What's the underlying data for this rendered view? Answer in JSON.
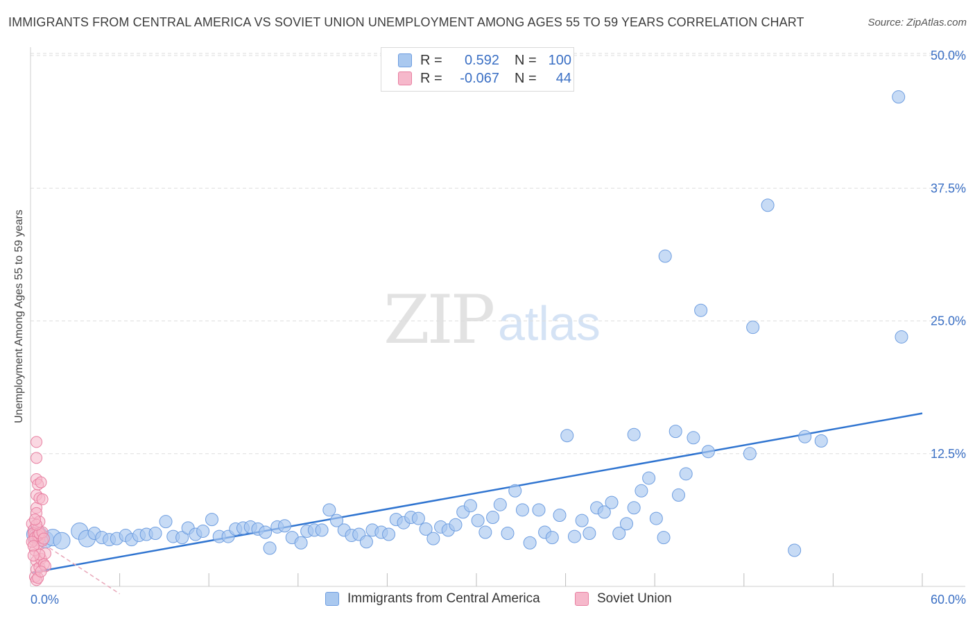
{
  "title": "IMMIGRANTS FROM CENTRAL AMERICA VS SOVIET UNION UNEMPLOYMENT AMONG AGES 55 TO 59 YEARS CORRELATION CHART",
  "source": "Source: ZipAtlas.com",
  "watermark": {
    "zip": "ZIP",
    "atlas": "atlas"
  },
  "legend": {
    "r_label": "R =",
    "n_label": "N =",
    "rows": [
      {
        "r": "0.592",
        "n": "100"
      },
      {
        "r": "-0.067",
        "n": "44"
      }
    ]
  },
  "bottom_legend": [
    "Immigrants from Central America",
    "Soviet Union"
  ],
  "colors": {
    "blue_fill": "#a9c8ef",
    "blue_stroke": "#6d9de0",
    "blue_line": "#2f74d0",
    "pink_fill": "#f6b8cb",
    "pink_stroke": "#e87fa1",
    "pink_line": "#e8a7b9",
    "grid": "#dddddd",
    "tick_label": "#3a6fc4"
  },
  "chart_data": {
    "type": "scatter",
    "xlabel": "",
    "ylabel": "Unemployment Among Ages 55 to 59 years",
    "xlim": [
      0,
      60
    ],
    "ylim": [
      0,
      50
    ],
    "x_tick_labels": [
      {
        "value": 0,
        "label": "0.0%"
      },
      {
        "value": 60,
        "label": "60.0%"
      }
    ],
    "y_tick_labels": [
      {
        "value": 12.5,
        "label": "12.5%"
      },
      {
        "value": 25,
        "label": "25.0%"
      },
      {
        "value": 37.5,
        "label": "37.5%"
      },
      {
        "value": 50,
        "label": "50.0%"
      }
    ],
    "grid": true,
    "legend_position": "top-center",
    "series": [
      {
        "name": "Immigrants from Central America",
        "trend": {
          "x": [
            0.1,
            60
          ],
          "y": [
            1.3,
            16.3
          ]
        },
        "points": [
          [
            0.3,
            4.9
          ],
          [
            0.6,
            4.8
          ],
          [
            1.0,
            4.4
          ],
          [
            1.5,
            4.6
          ],
          [
            2.1,
            4.3
          ],
          [
            3.3,
            5.2
          ],
          [
            3.8,
            4.5
          ],
          [
            4.3,
            5.0
          ],
          [
            4.8,
            4.6
          ],
          [
            5.3,
            4.4
          ],
          [
            5.8,
            4.5
          ],
          [
            6.4,
            4.8
          ],
          [
            6.8,
            4.4
          ],
          [
            7.3,
            4.8
          ],
          [
            7.8,
            4.9
          ],
          [
            8.4,
            5.0
          ],
          [
            9.1,
            6.1
          ],
          [
            9.6,
            4.7
          ],
          [
            10.2,
            4.6
          ],
          [
            10.6,
            5.5
          ],
          [
            11.1,
            4.9
          ],
          [
            11.6,
            5.2
          ],
          [
            12.2,
            6.3
          ],
          [
            12.7,
            4.7
          ],
          [
            13.3,
            4.7
          ],
          [
            13.8,
            5.4
          ],
          [
            14.3,
            5.5
          ],
          [
            14.8,
            5.6
          ],
          [
            15.3,
            5.4
          ],
          [
            15.8,
            5.1
          ],
          [
            16.1,
            3.6
          ],
          [
            16.6,
            5.6
          ],
          [
            17.1,
            5.7
          ],
          [
            17.6,
            4.6
          ],
          [
            18.2,
            4.1
          ],
          [
            18.6,
            5.2
          ],
          [
            19.1,
            5.3
          ],
          [
            19.6,
            5.3
          ],
          [
            20.1,
            7.2
          ],
          [
            20.6,
            6.2
          ],
          [
            21.1,
            5.3
          ],
          [
            21.6,
            4.8
          ],
          [
            22.1,
            4.9
          ],
          [
            22.6,
            4.2
          ],
          [
            23.0,
            5.3
          ],
          [
            23.6,
            5.1
          ],
          [
            24.1,
            4.9
          ],
          [
            24.6,
            6.3
          ],
          [
            25.1,
            6.0
          ],
          [
            25.6,
            6.5
          ],
          [
            26.1,
            6.4
          ],
          [
            26.6,
            5.4
          ],
          [
            27.1,
            4.5
          ],
          [
            27.6,
            5.6
          ],
          [
            28.1,
            5.3
          ],
          [
            28.6,
            5.8
          ],
          [
            29.1,
            7.0
          ],
          [
            29.6,
            7.6
          ],
          [
            30.1,
            6.2
          ],
          [
            30.6,
            5.1
          ],
          [
            31.1,
            6.5
          ],
          [
            31.6,
            7.7
          ],
          [
            32.1,
            5.0
          ],
          [
            32.6,
            9.0
          ],
          [
            33.1,
            7.2
          ],
          [
            33.6,
            4.1
          ],
          [
            34.2,
            7.2
          ],
          [
            34.6,
            5.1
          ],
          [
            35.1,
            4.6
          ],
          [
            35.6,
            6.7
          ],
          [
            36.1,
            14.2
          ],
          [
            36.6,
            4.7
          ],
          [
            37.1,
            6.2
          ],
          [
            37.6,
            5.0
          ],
          [
            38.1,
            7.4
          ],
          [
            38.6,
            7.0
          ],
          [
            39.1,
            7.9
          ],
          [
            39.6,
            5.0
          ],
          [
            40.1,
            5.9
          ],
          [
            40.6,
            7.4
          ],
          [
            41.1,
            9.0
          ],
          [
            41.6,
            10.2
          ],
          [
            42.1,
            6.4
          ],
          [
            42.6,
            4.6
          ],
          [
            42.7,
            31.1
          ],
          [
            43.4,
            14.6
          ],
          [
            43.6,
            8.6
          ],
          [
            44.1,
            10.6
          ],
          [
            44.6,
            14.0
          ],
          [
            45.1,
            26.0
          ],
          [
            45.6,
            12.7
          ],
          [
            48.4,
            12.5
          ],
          [
            48.6,
            24.4
          ],
          [
            49.6,
            35.9
          ],
          [
            51.4,
            3.4
          ],
          [
            52.1,
            14.1
          ],
          [
            53.2,
            13.7
          ],
          [
            58.4,
            46.1
          ],
          [
            58.6,
            23.5
          ],
          [
            40.6,
            14.3
          ]
        ]
      },
      {
        "name": "Soviet Union",
        "trend": {
          "x": [
            0.1,
            6
          ],
          "y": [
            4.7,
            -0.7
          ]
        },
        "points": [
          [
            0.1,
            5.9
          ],
          [
            0.2,
            5.3
          ],
          [
            0.2,
            4.4
          ],
          [
            0.3,
            4.9
          ],
          [
            0.3,
            3.4
          ],
          [
            0.3,
            0.9
          ],
          [
            0.4,
            13.6
          ],
          [
            0.4,
            12.1
          ],
          [
            0.4,
            10.1
          ],
          [
            0.4,
            8.6
          ],
          [
            0.4,
            7.4
          ],
          [
            0.4,
            6.9
          ],
          [
            0.4,
            2.4
          ],
          [
            0.4,
            1.6
          ],
          [
            0.4,
            0.6
          ],
          [
            0.5,
            9.6
          ],
          [
            0.5,
            5.4
          ],
          [
            0.5,
            4.0
          ],
          [
            0.6,
            8.3
          ],
          [
            0.6,
            6.1
          ],
          [
            0.6,
            4.6
          ],
          [
            0.6,
            1.8
          ],
          [
            0.7,
            9.8
          ],
          [
            0.7,
            4.9
          ],
          [
            0.7,
            2.6
          ],
          [
            0.8,
            8.2
          ],
          [
            0.8,
            4.3
          ],
          [
            0.9,
            2.1
          ],
          [
            1.0,
            3.1
          ],
          [
            1.0,
            1.9
          ],
          [
            0.2,
            5.0
          ],
          [
            0.3,
            4.6
          ],
          [
            0.5,
            4.8
          ],
          [
            0.6,
            5.0
          ],
          [
            0.1,
            4.2
          ],
          [
            0.2,
            3.8
          ],
          [
            0.8,
            5.1
          ],
          [
            0.9,
            4.5
          ],
          [
            0.4,
            5.8
          ],
          [
            0.3,
            6.3
          ],
          [
            0.5,
            0.8
          ],
          [
            0.7,
            1.4
          ],
          [
            0.6,
            3.0
          ],
          [
            0.2,
            2.9
          ]
        ]
      }
    ]
  }
}
